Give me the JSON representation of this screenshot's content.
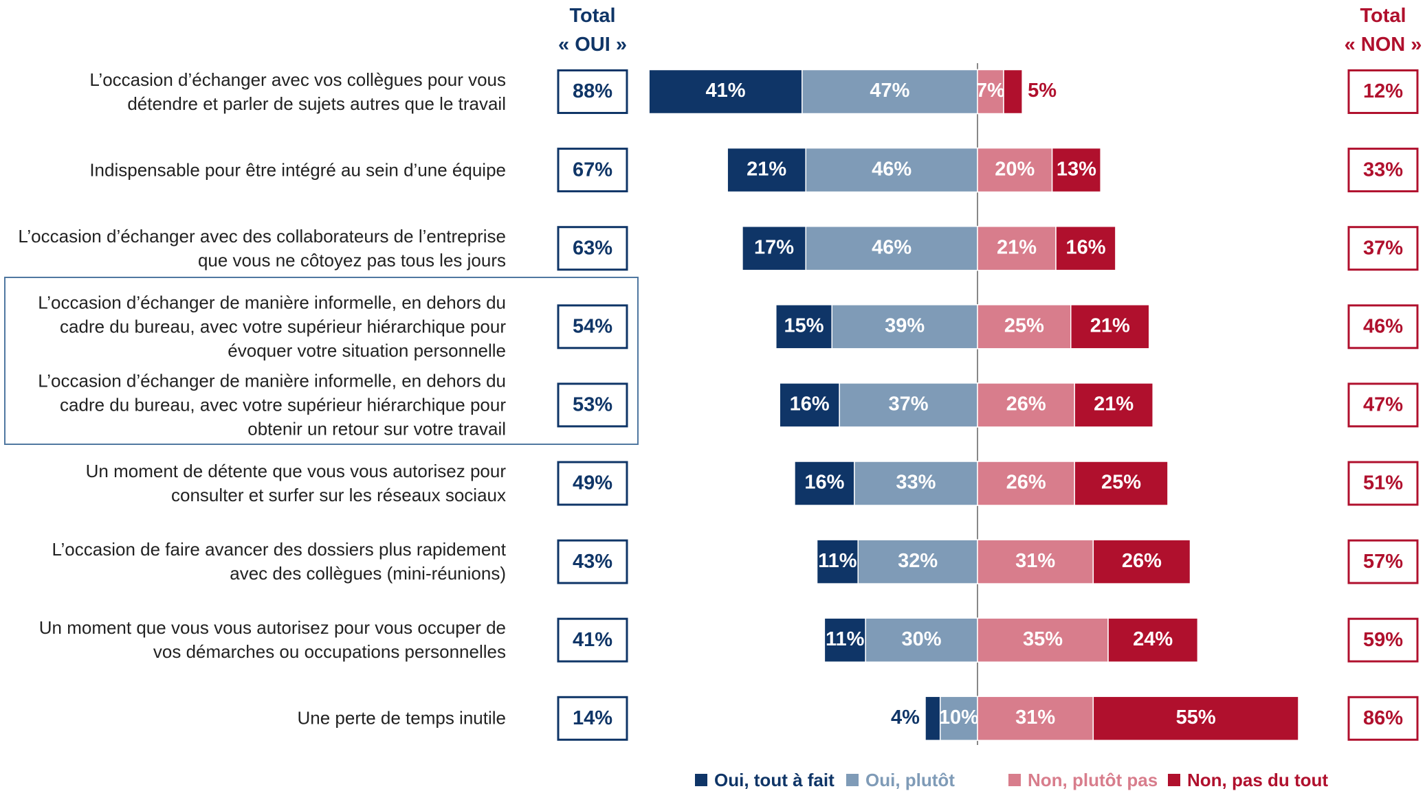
{
  "chart_data": {
    "type": "diverging_bar",
    "categories": [
      "L’occasion d’échanger avec vos collègues pour vous détendre et parler de sujets autres que le travail",
      "Indispensable pour être intégré au sein d’une équipe",
      "L’occasion d’échanger avec des collaborateurs de l’entreprise que vous ne côtoyez pas tous les jours",
      "L’occasion d’échanger de manière informelle, en dehors du cadre du bureau, avec votre supérieur hiérarchique pour évoquer votre situation personnelle",
      "L’occasion d’échanger de manière informelle, en dehors du cadre du bureau, avec votre supérieur hiérarchique pour obtenir un retour sur votre travail",
      "Un moment de détente que vous vous autorisez pour consulter et surfer sur les réseaux sociaux",
      "L’occasion de faire avancer des dossiers plus rapidement avec des collègues (mini-réunions)",
      "Un moment que vous vous autorisez pour vous occuper de vos démarches ou occupations personnelles",
      "Une perte de temps inutile"
    ],
    "series": [
      {
        "name": "Oui, tout à fait",
        "color": "#0f3567",
        "values": [
          41,
          21,
          17,
          15,
          16,
          16,
          11,
          11,
          4
        ],
        "value_labels": [
          "41%",
          "21%",
          "17%",
          "15%",
          "16%",
          "16%",
          "11%",
          "11%",
          "4%"
        ]
      },
      {
        "name": "Oui, plutôt",
        "color": "#7f9bb7",
        "values": [
          47,
          46,
          46,
          39,
          37,
          33,
          32,
          30,
          10
        ],
        "value_labels": [
          "47%",
          "46%",
          "46%",
          "39%",
          "37%",
          "33%",
          "32%",
          "30%",
          "10%"
        ]
      },
      {
        "name": "Non, plutôt pas",
        "color": "#d87d8c",
        "values": [
          7,
          20,
          21,
          25,
          26,
          26,
          31,
          35,
          31
        ],
        "value_labels": [
          "7%",
          "20%",
          "21%",
          "25%",
          "26%",
          "26%",
          "31%",
          "35%",
          "31%"
        ]
      },
      {
        "name": "Non, pas du tout",
        "color": "#b0102d",
        "values": [
          5,
          13,
          16,
          21,
          21,
          25,
          26,
          24,
          55
        ],
        "value_labels": [
          "5%",
          "13%",
          "16%",
          "21%",
          "21%",
          "25%",
          "26%",
          "24%",
          "55%"
        ]
      }
    ],
    "total_yes": {
      "title": "Total « OUI »",
      "color": "#0f3567",
      "values": [
        88,
        67,
        63,
        54,
        53,
        49,
        43,
        41,
        14
      ],
      "value_labels": [
        "88%",
        "67%",
        "63%",
        "54%",
        "53%",
        "49%",
        "43%",
        "41%",
        "14%"
      ]
    },
    "total_no": {
      "title": "Total « NON »",
      "color": "#b0102d",
      "values": [
        12,
        33,
        37,
        46,
        47,
        51,
        57,
        59,
        86
      ],
      "value_labels": [
        "12%",
        "33%",
        "37%",
        "46%",
        "47%",
        "51%",
        "57%",
        "59%",
        "86%"
      ]
    }
  }
}
